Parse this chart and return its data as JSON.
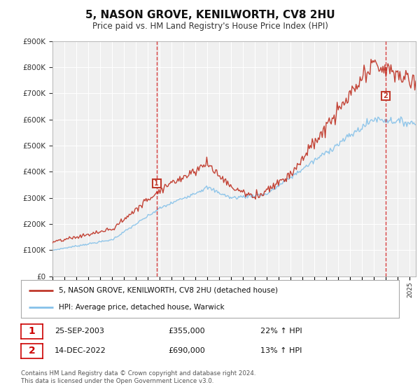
{
  "title": "5, NASON GROVE, KENILWORTH, CV8 2HU",
  "subtitle": "Price paid vs. HM Land Registry's House Price Index (HPI)",
  "footer": "Contains HM Land Registry data © Crown copyright and database right 2024.\nThis data is licensed under the Open Government Licence v3.0.",
  "legend_line1": "5, NASON GROVE, KENILWORTH, CV8 2HU (detached house)",
  "legend_line2": "HPI: Average price, detached house, Warwick",
  "sale1_date": "25-SEP-2003",
  "sale1_price": "£355,000",
  "sale1_hpi": "22% ↑ HPI",
  "sale2_date": "14-DEC-2022",
  "sale2_price": "£690,000",
  "sale2_hpi": "13% ↑ HPI",
  "sale1_year": 2003.73,
  "sale1_value": 355000,
  "sale2_year": 2022.95,
  "sale2_value": 690000,
  "hpi_color": "#85c1e9",
  "price_color": "#c0392b",
  "background_chart": "#f0f0f0",
  "background_fig": "#ffffff",
  "grid_color": "#ffffff",
  "vline_color": "#cc0000",
  "ylim": [
    0,
    900000
  ],
  "xlim_start": 1995,
  "xlim_end": 2025.5
}
